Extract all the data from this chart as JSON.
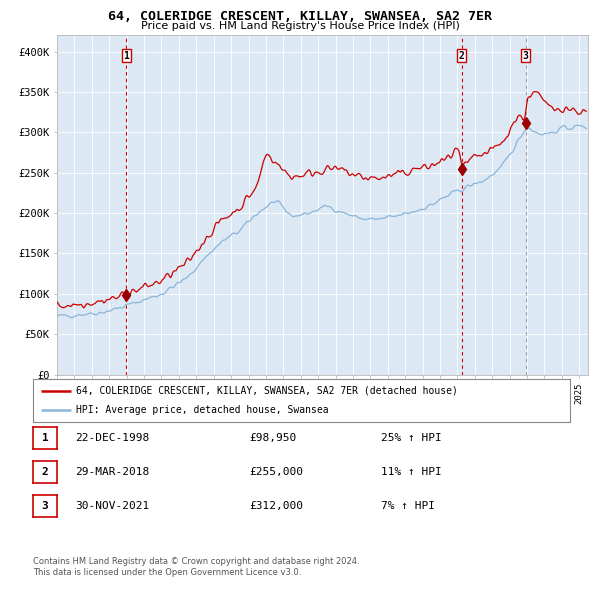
{
  "title": "64, COLERIDGE CRESCENT, KILLAY, SWANSEA, SA2 7ER",
  "subtitle": "Price paid vs. HM Land Registry's House Price Index (HPI)",
  "background_color": "#dce9f5",
  "plot_bg_color": "#dce9f5",
  "fig_bg_color": "#ffffff",
  "hpi_color": "#8ab4d8",
  "price_color": "#cc0000",
  "marker_color": "#990000",
  "vline1_color": "#cc0000",
  "vline2_color": "#cc0000",
  "vline3_color": "#999999",
  "transaction1": {
    "date_idx": 1998.97,
    "price": 98950,
    "label": "1"
  },
  "transaction2": {
    "date_idx": 2018.24,
    "price": 255000,
    "label": "2"
  },
  "transaction3": {
    "date_idx": 2021.92,
    "price": 312000,
    "label": "3"
  },
  "legend_line1": "64, COLERIDGE CRESCENT, KILLAY, SWANSEA, SA2 7ER (detached house)",
  "legend_line2": "HPI: Average price, detached house, Swansea",
  "table_rows": [
    {
      "num": "1",
      "date": "22-DEC-1998",
      "price": "£98,950",
      "hpi": "25% ↑ HPI"
    },
    {
      "num": "2",
      "date": "29-MAR-2018",
      "price": "£255,000",
      "hpi": "11% ↑ HPI"
    },
    {
      "num": "3",
      "date": "30-NOV-2021",
      "price": "£312,000",
      "hpi": "7% ↑ HPI"
    }
  ],
  "footer1": "Contains HM Land Registry data © Crown copyright and database right 2024.",
  "footer2": "This data is licensed under the Open Government Licence v3.0.",
  "ylim": [
    0,
    420000
  ],
  "xlim_start": 1995.0,
  "xlim_end": 2025.5,
  "hpi_anchors": [
    [
      1995.0,
      72000
    ],
    [
      1996.0,
      74000
    ],
    [
      1997.5,
      77000
    ],
    [
      1998.5,
      82000
    ],
    [
      1999.5,
      89000
    ],
    [
      2001.0,
      100000
    ],
    [
      2002.5,
      120000
    ],
    [
      2003.5,
      145000
    ],
    [
      2004.5,
      165000
    ],
    [
      2005.5,
      178000
    ],
    [
      2006.5,
      200000
    ],
    [
      2007.5,
      215000
    ],
    [
      2008.5,
      196000
    ],
    [
      2009.5,
      200000
    ],
    [
      2010.5,
      209000
    ],
    [
      2011.5,
      200000
    ],
    [
      2012.5,
      193000
    ],
    [
      2013.5,
      192000
    ],
    [
      2014.5,
      196000
    ],
    [
      2015.5,
      202000
    ],
    [
      2016.5,
      210000
    ],
    [
      2017.5,
      222000
    ],
    [
      2018.5,
      232000
    ],
    [
      2019.5,
      240000
    ],
    [
      2020.5,
      255000
    ],
    [
      2021.0,
      272000
    ],
    [
      2021.5,
      290000
    ],
    [
      2022.0,
      308000
    ],
    [
      2022.5,
      300000
    ],
    [
      2023.0,
      298000
    ],
    [
      2023.5,
      300000
    ],
    [
      2024.0,
      305000
    ],
    [
      2025.3,
      308000
    ]
  ],
  "red_anchors": [
    [
      1995.0,
      85000
    ],
    [
      1996.0,
      87000
    ],
    [
      1997.5,
      91000
    ],
    [
      1998.5,
      96000
    ],
    [
      1999.0,
      100000
    ],
    [
      2001.0,
      116000
    ],
    [
      2002.5,
      138000
    ],
    [
      2003.5,
      168000
    ],
    [
      2004.5,
      192000
    ],
    [
      2005.5,
      207000
    ],
    [
      2006.5,
      233000
    ],
    [
      2007.0,
      275000
    ],
    [
      2007.5,
      265000
    ],
    [
      2008.0,
      252000
    ],
    [
      2008.5,
      245000
    ],
    [
      2009.5,
      249000
    ],
    [
      2010.5,
      255000
    ],
    [
      2011.5,
      252000
    ],
    [
      2012.5,
      244000
    ],
    [
      2013.5,
      243000
    ],
    [
      2014.5,
      247000
    ],
    [
      2015.5,
      254000
    ],
    [
      2016.5,
      258000
    ],
    [
      2017.5,
      268000
    ],
    [
      2018.0,
      282000
    ],
    [
      2018.25,
      255000
    ],
    [
      2019.0,
      268000
    ],
    [
      2019.5,
      272000
    ],
    [
      2020.0,
      278000
    ],
    [
      2020.5,
      285000
    ],
    [
      2021.0,
      300000
    ],
    [
      2021.5,
      325000
    ],
    [
      2021.92,
      312000
    ],
    [
      2022.0,
      345000
    ],
    [
      2022.5,
      352000
    ],
    [
      2023.0,
      335000
    ],
    [
      2023.5,
      328000
    ],
    [
      2024.0,
      332000
    ],
    [
      2024.5,
      328000
    ],
    [
      2025.3,
      325000
    ]
  ]
}
